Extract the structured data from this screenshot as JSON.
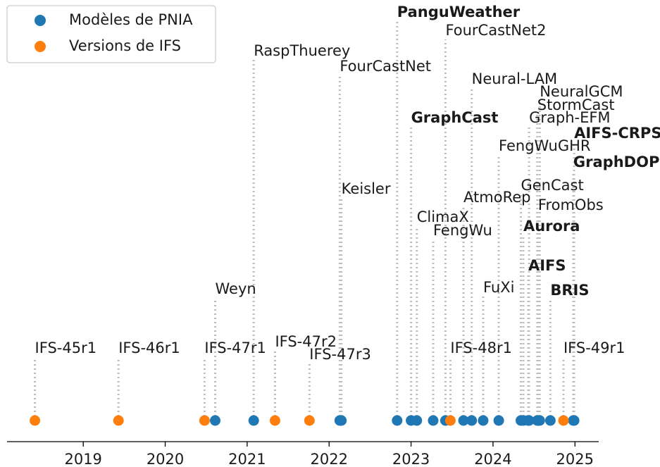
{
  "chart_data": {
    "type": "timeline",
    "xlim": [
      2018.07,
      2025.29
    ],
    "xticks": [
      2019,
      2020,
      2021,
      2022,
      2023,
      2024,
      2025
    ],
    "ylim": [
      -0.3,
      5.87
    ],
    "legend": "upper left",
    "series": [
      {
        "name": "Modèles de PNIA",
        "color": "#1f77b4",
        "events": [
          {
            "label": "Weyn",
            "x": 2020.61,
            "height": 1.74
          },
          {
            "label": "RaspThuerey",
            "x": 2021.08,
            "height": 5.12
          },
          {
            "label": "Keisler",
            "x": 2022.15,
            "height": 3.16
          },
          {
            "label": "FourCastNet",
            "x": 2022.13,
            "height": 4.9
          },
          {
            "label": "PanguWeather",
            "x": 2022.83,
            "height": 5.67,
            "bold": true
          },
          {
            "label": "GraphCast",
            "x": 2023.0,
            "height": 4.17,
            "bold": true
          },
          {
            "label": "ClimaX",
            "x": 2023.07,
            "height": 2.76
          },
          {
            "label": "FengWu",
            "x": 2023.27,
            "height": 2.57
          },
          {
            "label": "FourCastNet2",
            "x": 2023.42,
            "height": 5.41
          },
          {
            "label": "AtmoRep",
            "x": 2023.64,
            "height": 3.04
          },
          {
            "label": "Neural-LAM",
            "x": 2023.74,
            "height": 4.72
          },
          {
            "label": "FuXi",
            "x": 2023.88,
            "height": 1.76
          },
          {
            "label": "FengWuGHR",
            "x": 2024.07,
            "height": 3.77
          },
          {
            "label": "GenCast",
            "x": 2024.34,
            "height": 3.21
          },
          {
            "label": "Aurora",
            "x": 2024.37,
            "height": 2.63,
            "bold": true
          },
          {
            "label": "AIFS",
            "x": 2024.43,
            "height": 2.07,
            "bold": true
          },
          {
            "label": "Graph-EFM",
            "x": 2024.44,
            "height": 4.17
          },
          {
            "label": "StormCast",
            "x": 2024.54,
            "height": 4.35
          },
          {
            "label": "NeuralGCM",
            "x": 2024.57,
            "height": 4.54
          },
          {
            "label": "FromObs",
            "x": 2024.55,
            "height": 2.93
          },
          {
            "label": "BRIS",
            "x": 2024.7,
            "height": 1.72,
            "bold": true
          },
          {
            "label": "AIFS-CRPS",
            "x": 2024.99,
            "height": 3.95,
            "bold": true
          },
          {
            "label": "GraphDOP",
            "x": 2024.98,
            "height": 3.54,
            "bold": true
          }
        ]
      },
      {
        "name": "Versions de IFS",
        "color": "#ff7f0e",
        "events": [
          {
            "label": "IFS-45r1",
            "x": 2018.41,
            "height": 0.9
          },
          {
            "label": "IFS-46r1",
            "x": 2019.43,
            "height": 0.9
          },
          {
            "label": "IFS-47r1",
            "x": 2020.48,
            "height": 0.9
          },
          {
            "label": "IFS-47r2",
            "x": 2021.34,
            "height": 0.99
          },
          {
            "label": "IFS-47r3",
            "x": 2021.76,
            "height": 0.81
          },
          {
            "label": "IFS-48r1",
            "x": 2023.48,
            "height": 0.9
          },
          {
            "label": "IFS-49r1",
            "x": 2024.86,
            "height": 0.9
          }
        ]
      }
    ]
  }
}
